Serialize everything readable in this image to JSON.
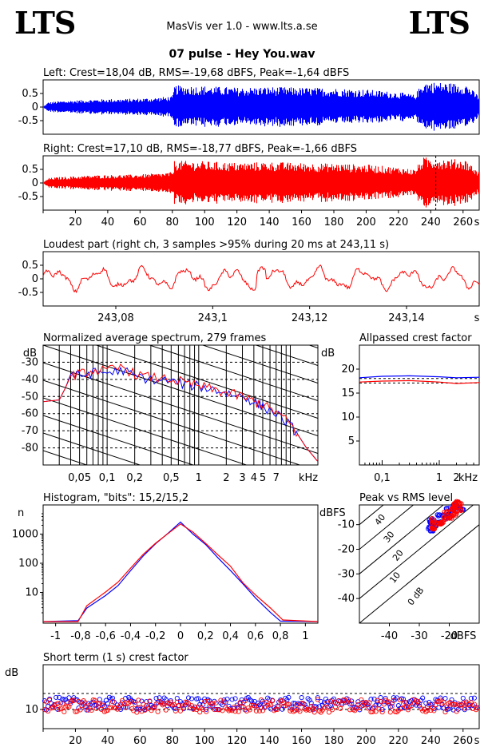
{
  "header": {
    "brand_left": "LTS",
    "brand_right": "LTS",
    "app_title": "MasVis ver 1.0 - www.lts.a.se",
    "file_title": "07 pulse - Hey You.wav"
  },
  "colors": {
    "left": "#0000ff",
    "right": "#ff0000",
    "axis": "#000000"
  },
  "chart_data": [
    {
      "type": "area",
      "title": "Left: Crest=18,04 dB, RMS=-19,68 dBFS, Peak=-1,64 dBFS",
      "xlim": [
        0,
        270
      ],
      "ylim": [
        -1,
        1
      ],
      "yticks": [
        "0.5",
        "0",
        "-0.5"
      ],
      "series": [
        {
          "name": "Left",
          "envelope": [
            {
              "t": 0,
              "a": 0.02
            },
            {
              "t": 3,
              "a": 0.18
            },
            {
              "t": 10,
              "a": 0.22
            },
            {
              "t": 20,
              "a": 0.25
            },
            {
              "t": 30,
              "a": 0.28
            },
            {
              "t": 40,
              "a": 0.3
            },
            {
              "t": 50,
              "a": 0.3
            },
            {
              "t": 60,
              "a": 0.32
            },
            {
              "t": 70,
              "a": 0.35
            },
            {
              "t": 80,
              "a": 0.4
            },
            {
              "t": 81,
              "a": 0.8
            },
            {
              "t": 100,
              "a": 0.78
            },
            {
              "t": 120,
              "a": 0.72
            },
            {
              "t": 140,
              "a": 0.75
            },
            {
              "t": 160,
              "a": 0.72
            },
            {
              "t": 180,
              "a": 0.7
            },
            {
              "t": 200,
              "a": 0.65
            },
            {
              "t": 220,
              "a": 0.55
            },
            {
              "t": 230,
              "a": 0.45
            },
            {
              "t": 235,
              "a": 0.95
            },
            {
              "t": 250,
              "a": 0.9
            },
            {
              "t": 262,
              "a": 0.85
            },
            {
              "t": 266,
              "a": 0.6
            },
            {
              "t": 270,
              "a": 0.4
            }
          ]
        }
      ]
    },
    {
      "type": "area",
      "title": "Right: Crest=17,10 dB, RMS=-18,77 dBFS, Peak=-1,66 dBFS",
      "xlim": [
        0,
        270
      ],
      "ylim": [
        -1,
        1
      ],
      "yticks": [
        "0.5",
        "0",
        "-0.5"
      ],
      "xticks": [
        "20",
        "40",
        "60",
        "80",
        "100",
        "120",
        "140",
        "160",
        "180",
        "200",
        "220",
        "240",
        "260",
        "s"
      ],
      "marker_time": 243.11,
      "series": [
        {
          "name": "Right",
          "envelope": [
            {
              "t": 0,
              "a": 0.02
            },
            {
              "t": 3,
              "a": 0.18
            },
            {
              "t": 10,
              "a": 0.22
            },
            {
              "t": 20,
              "a": 0.25
            },
            {
              "t": 30,
              "a": 0.28
            },
            {
              "t": 40,
              "a": 0.3
            },
            {
              "t": 50,
              "a": 0.3
            },
            {
              "t": 60,
              "a": 0.32
            },
            {
              "t": 70,
              "a": 0.35
            },
            {
              "t": 80,
              "a": 0.4
            },
            {
              "t": 81,
              "a": 0.82
            },
            {
              "t": 100,
              "a": 0.8
            },
            {
              "t": 120,
              "a": 0.75
            },
            {
              "t": 140,
              "a": 0.78
            },
            {
              "t": 160,
              "a": 0.74
            },
            {
              "t": 180,
              "a": 0.72
            },
            {
              "t": 200,
              "a": 0.68
            },
            {
              "t": 220,
              "a": 0.58
            },
            {
              "t": 230,
              "a": 0.5
            },
            {
              "t": 235,
              "a": 0.95
            },
            {
              "t": 250,
              "a": 0.9
            },
            {
              "t": 262,
              "a": 0.85
            },
            {
              "t": 266,
              "a": 0.6
            },
            {
              "t": 270,
              "a": 0.4
            }
          ]
        }
      ]
    },
    {
      "type": "line",
      "title": "Loudest part (right ch, 3 samples >95% during 20 ms at 243,11 s)",
      "xlim": [
        243.065,
        243.155
      ],
      "ylim": [
        -1,
        1
      ],
      "yticks": [
        "0.5",
        "0",
        "-0.5"
      ],
      "xticks": [
        "243,08",
        "243,1",
        "243,12",
        "243,14",
        "s"
      ],
      "series": [
        {
          "name": "Right",
          "color": "#ff0000"
        }
      ]
    },
    {
      "type": "line",
      "title": "Normalized average spectrum, 279 frames",
      "ylabel": "dB",
      "xlabel": "kHz",
      "xscale": "log",
      "xlim": [
        0.02,
        20
      ],
      "ylim": [
        -90,
        -20
      ],
      "yticks": [
        "-30",
        "-40",
        "-50",
        "-60",
        "-70",
        "-80"
      ],
      "xticks": [
        "0,05",
        "0,1",
        "0,2",
        "0,5",
        "1",
        "2",
        "3",
        "4",
        "5",
        "7",
        "kHz"
      ],
      "series": [
        {
          "name": "Left",
          "color": "#0000ff",
          "points": [
            [
              0.02,
              -53
            ],
            [
              0.03,
              -52
            ],
            [
              0.035,
              -45
            ],
            [
              0.04,
              -37
            ],
            [
              0.05,
              -38
            ],
            [
              0.07,
              -36
            ],
            [
              0.1,
              -36
            ],
            [
              0.15,
              -35
            ],
            [
              0.2,
              -38
            ],
            [
              0.3,
              -40
            ],
            [
              0.5,
              -41
            ],
            [
              0.7,
              -43
            ],
            [
              1,
              -44
            ],
            [
              1.5,
              -46
            ],
            [
              2,
              -48
            ],
            [
              3,
              -50
            ],
            [
              4,
              -53
            ],
            [
              5,
              -56
            ],
            [
              7,
              -60
            ],
            [
              10,
              -67
            ],
            [
              12,
              -72
            ],
            [
              15,
              -80
            ],
            [
              20,
              -88
            ]
          ]
        },
        {
          "name": "Right",
          "color": "#ff0000",
          "points": [
            [
              0.02,
              -53
            ],
            [
              0.03,
              -52
            ],
            [
              0.035,
              -45
            ],
            [
              0.04,
              -38
            ],
            [
              0.05,
              -37
            ],
            [
              0.07,
              -35
            ],
            [
              0.1,
              -35
            ],
            [
              0.15,
              -33
            ],
            [
              0.2,
              -37
            ],
            [
              0.3,
              -39
            ],
            [
              0.5,
              -40
            ],
            [
              0.7,
              -42
            ],
            [
              1,
              -44
            ],
            [
              1.5,
              -46
            ],
            [
              2,
              -48
            ],
            [
              3,
              -50
            ],
            [
              4,
              -53
            ],
            [
              5,
              -55
            ],
            [
              7,
              -59
            ],
            [
              10,
              -66
            ],
            [
              12,
              -72
            ],
            [
              15,
              -80
            ],
            [
              20,
              -88
            ]
          ]
        }
      ]
    },
    {
      "type": "line",
      "title": "Allpassed crest factor",
      "ylabel": "dB",
      "xlabel": "kHz",
      "xscale": "log",
      "xlim": [
        0.04,
        5
      ],
      "ylim": [
        0,
        25
      ],
      "yticks": [
        "20",
        "15",
        "10",
        "5"
      ],
      "xticks": [
        "0,1",
        "1",
        "2",
        "kHz"
      ],
      "series": [
        {
          "name": "Left",
          "color": "#0000ff",
          "points": [
            [
              0.04,
              18.2
            ],
            [
              0.1,
              18.5
            ],
            [
              0.3,
              18.6
            ],
            [
              1,
              18.4
            ],
            [
              2,
              18.2
            ],
            [
              5,
              18.3
            ]
          ]
        },
        {
          "name": "Right",
          "color": "#ff0000",
          "points": [
            [
              0.04,
              17.3
            ],
            [
              0.1,
              17.5
            ],
            [
              0.3,
              17.6
            ],
            [
              1,
              17.3
            ],
            [
              2,
              17
            ],
            [
              5,
              17.2
            ]
          ]
        }
      ],
      "reference_lines": [
        18.04,
        17.1
      ]
    },
    {
      "type": "line",
      "title": "Histogram, \"bits\": 15,2/15,2",
      "ylabel": "n",
      "yscale": "log",
      "xlim": [
        -1.1,
        1.1
      ],
      "ylim": [
        1,
        10000
      ],
      "yticks": [
        "1000",
        "100",
        "10"
      ],
      "xticks": [
        "-1",
        "-0,8",
        "-0,6",
        "-0,4",
        "-0,2",
        "0",
        "0,2",
        "0,4",
        "0,6",
        "0,8",
        "1"
      ],
      "series": [
        {
          "name": "Left",
          "color": "#0000ff",
          "points": [
            [
              -0.82,
              1
            ],
            [
              -0.75,
              3
            ],
            [
              -0.6,
              7
            ],
            [
              -0.5,
              18
            ],
            [
              -0.4,
              55
            ],
            [
              -0.3,
              170
            ],
            [
              -0.2,
              450
            ],
            [
              -0.1,
              1100
            ],
            [
              0,
              2600
            ],
            [
              0.1,
              1100
            ],
            [
              0.2,
              450
            ],
            [
              0.3,
              170
            ],
            [
              0.4,
              55
            ],
            [
              0.5,
              18
            ],
            [
              0.6,
              6
            ],
            [
              0.72,
              2
            ],
            [
              0.8,
              1
            ]
          ]
        },
        {
          "name": "Right",
          "color": "#ff0000",
          "points": [
            [
              -0.82,
              1
            ],
            [
              -0.75,
              4
            ],
            [
              -0.6,
              9
            ],
            [
              -0.5,
              25
            ],
            [
              -0.4,
              70
            ],
            [
              -0.3,
              200
            ],
            [
              -0.2,
              520
            ],
            [
              -0.1,
              1200
            ],
            [
              0,
              2600
            ],
            [
              0.1,
              1200
            ],
            [
              0.2,
              520
            ],
            [
              0.3,
              200
            ],
            [
              0.4,
              70
            ],
            [
              0.5,
              25
            ],
            [
              0.6,
              8
            ],
            [
              0.72,
              3
            ],
            [
              0.82,
              1
            ]
          ]
        }
      ]
    },
    {
      "type": "scatter",
      "title": "Peak vs RMS level",
      "ylabel": "dBFS",
      "xlabel": "dBFS",
      "xlim": [
        -50,
        -10
      ],
      "ylim": [
        -50,
        -2
      ],
      "yticks": [
        "-10",
        "-20",
        "-30",
        "-40"
      ],
      "xticks": [
        "-40",
        "-30",
        "-20",
        "dBFS"
      ],
      "diagonal_labels": [
        "40",
        "30",
        "20",
        "10",
        "0 dB"
      ]
    },
    {
      "type": "scatter",
      "title": "Short term (1 s) crest factor",
      "ylabel": "dB",
      "xlim": [
        0,
        270
      ],
      "ylim": [
        4,
        24
      ],
      "yticks": [
        "10"
      ],
      "xticks": [
        "20",
        "40",
        "60",
        "80",
        "100",
        "120",
        "140",
        "160",
        "180",
        "200",
        "220",
        "240",
        "260",
        "s"
      ],
      "reference_lines": [
        15,
        10
      ]
    }
  ]
}
